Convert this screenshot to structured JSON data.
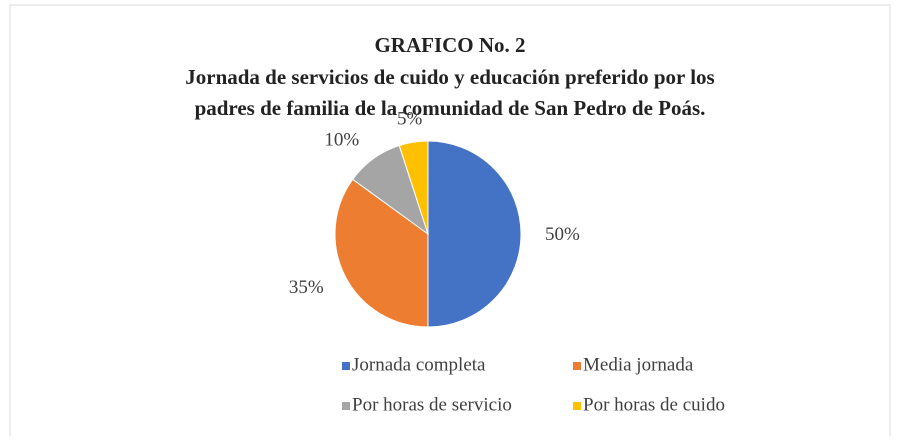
{
  "chart_data": {
    "type": "pie",
    "title": "GRAFICO No. 2",
    "subtitle": [
      "Jornada de servicios de cuido y educación  preferido por los",
      "padres de familia de la comunidad de San Pedro de Poás."
    ],
    "categories": [
      "Jornada completa",
      "Media jornada",
      "Por horas de servicio",
      "Por horas de cuido"
    ],
    "values": [
      50,
      35,
      10,
      5
    ],
    "value_labels": [
      "50%",
      "35%",
      "10%",
      "5%"
    ],
    "colors": [
      "#4472c4",
      "#ed7d31",
      "#a5a5a5",
      "#ffc000"
    ],
    "legend": "bottom"
  }
}
